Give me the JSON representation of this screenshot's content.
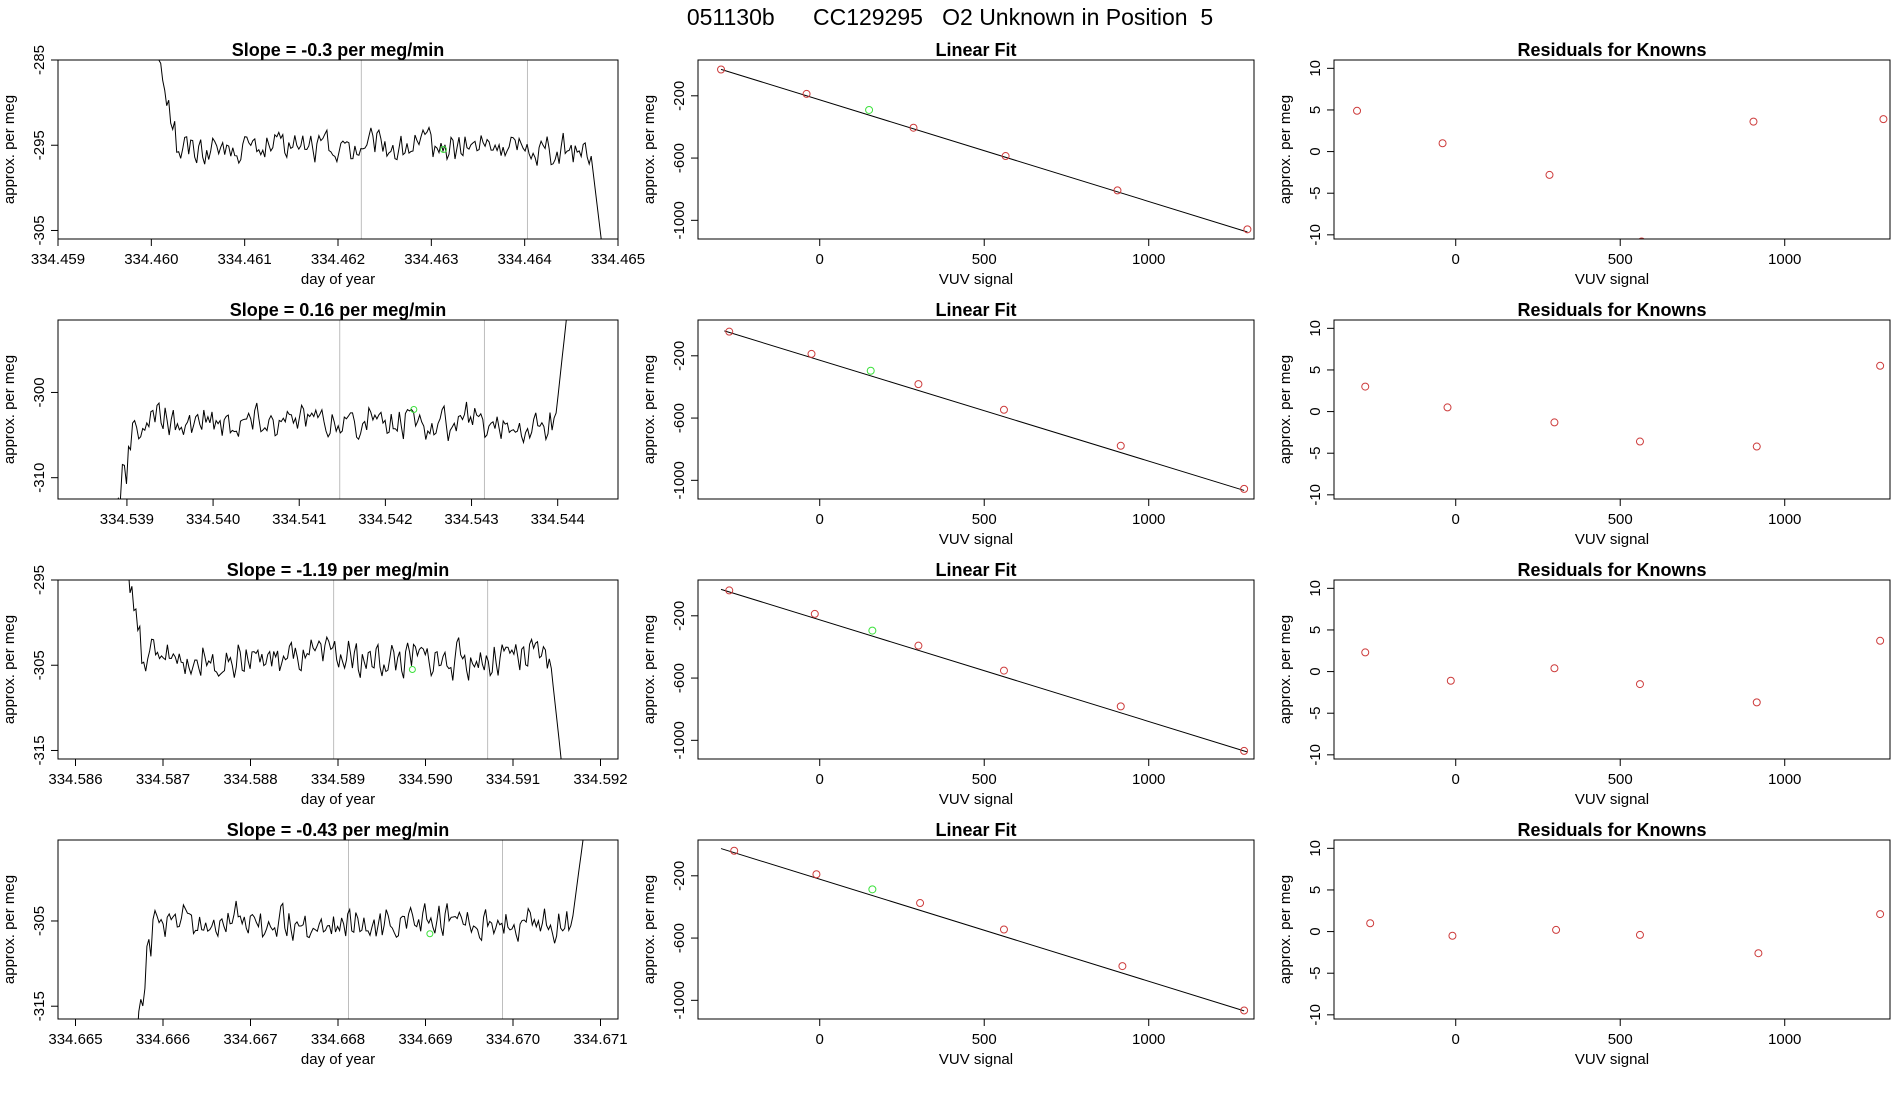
{
  "page": {
    "title": "051130b      CC129295   O2 Unknown in Position  5"
  },
  "colors": {
    "trace": "#000000",
    "known_point": "#cd3c3c",
    "unknown_point": "#3ce13c",
    "divider": "#bebebe",
    "fit_line": "#000000"
  },
  "chart_data": [
    {
      "type": "line",
      "panel": "trace",
      "row": 1,
      "title": "Slope =  -0.3  per meg/min",
      "xlabel": "day of year",
      "ylabel": "approx. per meg",
      "xlim": [
        334.459,
        334.465
      ],
      "ylim": [
        -306,
        -285
      ],
      "xticks": [
        "334.459",
        "334.460",
        "334.461",
        "334.462",
        "334.463",
        "334.464",
        "334.465"
      ],
      "yticks": [
        "-285",
        "-295",
        "-305"
      ],
      "dividers": [
        334.46225,
        334.46403
      ],
      "unknown_point": [
        334.46313,
        -295.5
      ],
      "start_level": -285,
      "start_x": 334.4601,
      "mean": -295.3,
      "amp": 2.2,
      "end_x": 334.46482,
      "end_level": -306
    },
    {
      "type": "scatter",
      "panel": "fit",
      "row": 1,
      "title": "Linear Fit",
      "xlabel": "VUV signal",
      "ylabel": "approx. per meg",
      "xlim": [
        -370,
        1320
      ],
      "ylim": [
        -1120,
        30
      ],
      "xticks": [
        "0",
        "500",
        "1000"
      ],
      "yticks": [
        "-200",
        "-600",
        "-1000"
      ],
      "line": [
        [
          -300,
          -30
        ],
        [
          1300,
          -1075
        ]
      ],
      "knowns": [
        [
          -300,
          -31
        ],
        [
          -40,
          -188
        ],
        [
          285,
          -405
        ],
        [
          565,
          -587
        ],
        [
          905,
          -808
        ],
        [
          1300,
          -1058
        ]
      ],
      "unknown": [
        [
          150,
          -291
        ]
      ]
    },
    {
      "type": "scatter",
      "panel": "residuals",
      "row": 1,
      "title": "Residuals for Knowns",
      "xlabel": "VUV signal",
      "ylabel": "approx. per meg",
      "xlim": [
        -370,
        1320
      ],
      "ylim": [
        -10.5,
        11
      ],
      "xticks": [
        "0",
        "500",
        "1000"
      ],
      "yticks": [
        "10",
        "5",
        "0",
        "-5",
        "-10"
      ],
      "points": [
        [
          -300,
          4.9
        ],
        [
          -40,
          1.0
        ],
        [
          285,
          -2.8
        ],
        [
          565,
          -10.8
        ],
        [
          905,
          3.6
        ],
        [
          1300,
          3.9
        ]
      ]
    },
    {
      "type": "line",
      "panel": "trace",
      "row": 2,
      "title": "Slope =  0.16  per meg/min",
      "xlabel": "",
      "ylabel": "approx. per meg",
      "xlim": [
        334.5382,
        334.5447
      ],
      "ylim": [
        -312.5,
        -291.5
      ],
      "xticks": [
        "334.539",
        "334.540",
        "334.541",
        "334.542",
        "334.543",
        "334.544"
      ],
      "yticks": [
        "-300",
        "-310"
      ],
      "dividers": [
        334.54147,
        334.54315
      ],
      "unknown_point": [
        334.54233,
        -302
      ],
      "start_level": -313,
      "start_x": 334.5389,
      "mean": -303.5,
      "amp": 2.4,
      "end_x": 334.5441,
      "end_level": -291.5
    },
    {
      "type": "scatter",
      "panel": "fit",
      "row": 2,
      "title": "Linear Fit",
      "xlabel": "VUV signal",
      "ylabel": "approx. per meg",
      "xlim": [
        -370,
        1320
      ],
      "ylim": [
        -1120,
        30
      ],
      "xticks": [
        "0",
        "500",
        "1000"
      ],
      "yticks": [
        "-200",
        "-600",
        "-1000"
      ],
      "line": [
        [
          -290,
          -40
        ],
        [
          1290,
          -1065
        ]
      ],
      "knowns": [
        [
          -275,
          -45
        ],
        [
          -25,
          -188
        ],
        [
          300,
          -382
        ],
        [
          560,
          -547
        ],
        [
          915,
          -778
        ],
        [
          1290,
          -1055
        ]
      ],
      "unknown": [
        [
          155,
          -296
        ]
      ]
    },
    {
      "type": "scatter",
      "panel": "residuals",
      "row": 2,
      "title": "Residuals for Knowns",
      "xlabel": "VUV signal",
      "ylabel": "approx. per meg",
      "xlim": [
        -370,
        1320
      ],
      "ylim": [
        -10.5,
        11
      ],
      "xticks": [
        "0",
        "500",
        "1000"
      ],
      "yticks": [
        "10",
        "5",
        "0",
        "-5",
        "-10"
      ],
      "points": [
        [
          -275,
          3.0
        ],
        [
          -25,
          0.5
        ],
        [
          300,
          -1.3
        ],
        [
          560,
          -3.6
        ],
        [
          915,
          -4.2
        ],
        [
          1290,
          5.5
        ]
      ]
    },
    {
      "type": "line",
      "panel": "trace",
      "row": 3,
      "title": "Slope =  -1.19  per meg/min",
      "xlabel": "day of year",
      "ylabel": "approx. per meg",
      "xlim": [
        334.5858,
        334.5922
      ],
      "ylim": [
        -316,
        -295
      ],
      "xticks": [
        "334.586",
        "334.587",
        "334.588",
        "334.589",
        "334.590",
        "334.591",
        "334.592"
      ],
      "yticks": [
        "-295",
        "-305",
        "-315"
      ],
      "dividers": [
        334.58895,
        334.59071
      ],
      "unknown_point": [
        334.58985,
        -305.5
      ],
      "start_level": -295,
      "start_x": 334.5866,
      "mean": -304.3,
      "amp": 2.6,
      "end_x": 334.59155,
      "end_level": -316
    },
    {
      "type": "scatter",
      "panel": "fit",
      "row": 3,
      "title": "Linear Fit",
      "xlabel": "VUV signal",
      "ylabel": "approx. per meg",
      "xlim": [
        -370,
        1320
      ],
      "ylim": [
        -1120,
        30
      ],
      "xticks": [
        "0",
        "500",
        "1000"
      ],
      "yticks": [
        "-200",
        "-600",
        "-1000"
      ],
      "line": [
        [
          -300,
          -30
        ],
        [
          1300,
          -1075
        ]
      ],
      "knowns": [
        [
          -275,
          -37
        ],
        [
          -15,
          -188
        ],
        [
          300,
          -392
        ],
        [
          560,
          -552
        ],
        [
          915,
          -782
        ],
        [
          1290,
          -1068
        ]
      ],
      "unknown": [
        [
          160,
          -295
        ]
      ]
    },
    {
      "type": "scatter",
      "panel": "residuals",
      "row": 3,
      "title": "Residuals for Knowns",
      "xlabel": "VUV signal",
      "ylabel": "approx. per meg",
      "xlim": [
        -370,
        1320
      ],
      "ylim": [
        -10.5,
        11
      ],
      "xticks": [
        "0",
        "500",
        "1000"
      ],
      "yticks": [
        "10",
        "5",
        "0",
        "-5",
        "-10"
      ],
      "points": [
        [
          -275,
          2.3
        ],
        [
          -15,
          -1.1
        ],
        [
          300,
          0.4
        ],
        [
          560,
          -1.5
        ],
        [
          915,
          -3.7
        ],
        [
          1290,
          3.7
        ]
      ]
    },
    {
      "type": "line",
      "panel": "trace",
      "row": 4,
      "title": "Slope =  -0.43  per meg/min",
      "xlabel": "day of year",
      "ylabel": "approx. per meg",
      "xlim": [
        334.6648,
        334.6712
      ],
      "ylim": [
        -316.5,
        -295.5
      ],
      "xticks": [
        "334.665",
        "334.666",
        "334.667",
        "334.668",
        "334.669",
        "334.670",
        "334.671"
      ],
      "yticks": [
        "-305",
        "-315"
      ],
      "dividers": [
        334.66812,
        334.66988
      ],
      "unknown_point": [
        334.66905,
        -306.5
      ],
      "start_level": -317,
      "start_x": 334.6657,
      "mean": -305.3,
      "amp": 2.4,
      "end_x": 334.6708,
      "end_level": -295.5
    },
    {
      "type": "scatter",
      "panel": "fit",
      "row": 4,
      "title": "Linear Fit",
      "xlabel": "VUV signal",
      "ylabel": "approx. per meg",
      "xlim": [
        -370,
        1320
      ],
      "ylim": [
        -1120,
        30
      ],
      "xticks": [
        "0",
        "500",
        "1000"
      ],
      "yticks": [
        "-200",
        "-600",
        "-1000"
      ],
      "line": [
        [
          -300,
          -25
        ],
        [
          1290,
          -1068
        ]
      ],
      "knowns": [
        [
          -260,
          -39
        ],
        [
          -10,
          -190
        ],
        [
          305,
          -375
        ],
        [
          560,
          -545
        ],
        [
          920,
          -780
        ],
        [
          1290,
          -1065
        ]
      ],
      "unknown": [
        [
          160,
          -287
        ]
      ]
    },
    {
      "type": "scatter",
      "panel": "residuals",
      "row": 4,
      "title": "Residuals for Knowns",
      "xlabel": "VUV signal",
      "ylabel": "approx. per meg",
      "xlim": [
        -370,
        1320
      ],
      "ylim": [
        -10.5,
        11
      ],
      "xticks": [
        "0",
        "500",
        "1000"
      ],
      "yticks": [
        "10",
        "5",
        "0",
        "-5",
        "-10"
      ],
      "points": [
        [
          -260,
          1.0
        ],
        [
          -10,
          -0.5
        ],
        [
          305,
          0.2
        ],
        [
          560,
          -0.4
        ],
        [
          920,
          -2.6
        ],
        [
          1290,
          2.1
        ]
      ]
    }
  ]
}
